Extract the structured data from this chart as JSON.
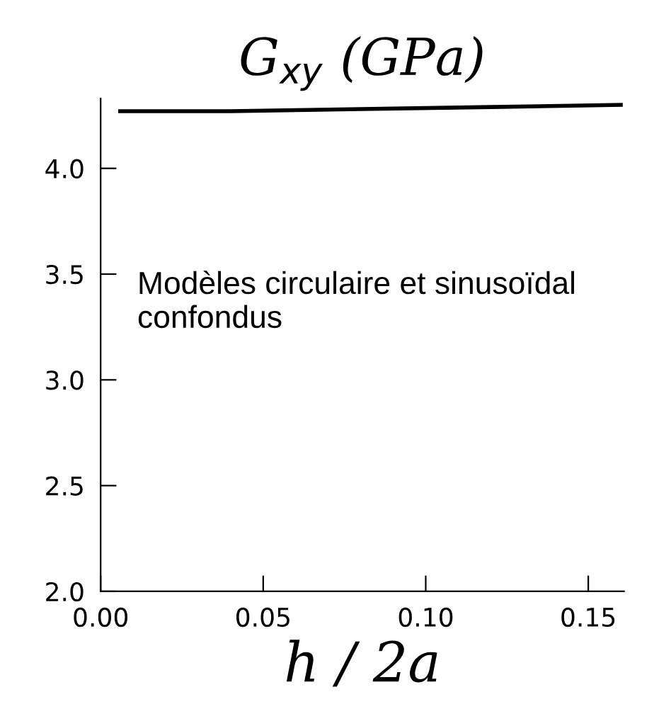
{
  "chart_data": {
    "type": "line",
    "title": "G$_{xy}$ (GPa)",
    "xlabel": "h / 2a",
    "x": [
      0.006,
      0.04,
      0.08,
      0.12,
      0.16
    ],
    "series": [
      {
        "color": "#000000",
        "values": [
          4.27,
          4.27,
          4.28,
          4.29,
          4.3
        ]
      }
    ],
    "xlim": [
      0,
      0.161
    ],
    "ylim": [
      2.0,
      4.33
    ],
    "xticks": [
      {
        "value": 0,
        "label": "0.00"
      },
      {
        "value": 0.05,
        "label": "0.05"
      },
      {
        "value": 0.1,
        "label": "0.10"
      },
      {
        "value": 0.15,
        "label": "0.15"
      }
    ],
    "yticks": [
      {
        "value": 2.0,
        "label": "2.0"
      },
      {
        "value": 2.5,
        "label": "2.5"
      },
      {
        "value": 3.0,
        "label": "3.0"
      },
      {
        "value": 3.5,
        "label": "3.5"
      },
      {
        "value": 4.0,
        "label": "4.0"
      }
    ],
    "annotations": [
      "Modèles circulaire et sinusoïdal confondus"
    ],
    "grid": false,
    "legend": false,
    "marker": "none",
    "line_style": "solid"
  }
}
